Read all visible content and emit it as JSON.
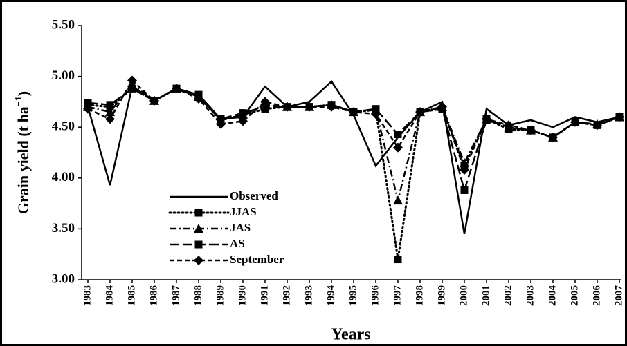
{
  "chart_data": {
    "type": "line",
    "xlabel": "Years",
    "ylabel": {
      "text": "Grain yield (t ha",
      "superscript": "−1",
      "suffix": ")"
    },
    "categories": [
      "1983",
      "1984",
      "1985",
      "1986",
      "1987",
      "1988",
      "1989",
      "1990",
      "1991",
      "1992",
      "1993",
      "1994",
      "1995",
      "1996",
      "1997",
      "1998",
      "1999",
      "2000",
      "2001",
      "2002",
      "2003",
      "2004",
      "2005",
      "2006",
      "2007"
    ],
    "ylim": [
      3,
      5.5
    ],
    "yticks": [
      {
        "value": 3,
        "label": "3.00"
      },
      {
        "value": 3.5,
        "label": "3.50"
      },
      {
        "value": 4,
        "label": "4.00"
      },
      {
        "value": 4.5,
        "label": "4.50"
      },
      {
        "value": 5,
        "label": "5.00"
      },
      {
        "value": 5.5,
        "label": "5.50"
      }
    ],
    "grid": false,
    "series": [
      {
        "name": "Observed",
        "color": "#000000",
        "dash": "solid",
        "marker": "none",
        "values": [
          4.7,
          3.93,
          4.9,
          4.76,
          4.88,
          4.82,
          4.58,
          4.6,
          4.9,
          4.7,
          4.75,
          4.95,
          4.62,
          4.12,
          4.4,
          4.65,
          4.75,
          3.45,
          4.68,
          4.52,
          4.57,
          4.5,
          4.6,
          4.55,
          4.6
        ]
      },
      {
        "name": "JJAS",
        "color": "#000000",
        "dash": "dotted",
        "marker": "square",
        "values": [
          4.72,
          4.7,
          4.88,
          4.76,
          4.88,
          4.8,
          4.57,
          4.62,
          4.68,
          4.7,
          4.7,
          4.72,
          4.65,
          4.67,
          3.2,
          4.65,
          4.68,
          4.12,
          4.58,
          4.48,
          4.47,
          4.4,
          4.55,
          4.52,
          4.6
        ]
      },
      {
        "name": "JAS",
        "color": "#000000",
        "dash": "dashdot",
        "marker": "triangle",
        "values": [
          4.7,
          4.65,
          4.92,
          4.76,
          4.88,
          4.8,
          4.57,
          4.62,
          4.72,
          4.7,
          4.7,
          4.72,
          4.65,
          4.67,
          3.78,
          4.65,
          4.7,
          4.15,
          4.58,
          4.5,
          4.47,
          4.4,
          4.55,
          4.53,
          4.6
        ]
      },
      {
        "name": "AS",
        "color": "#000000",
        "dash": "longdash",
        "marker": "square",
        "values": [
          4.74,
          4.72,
          4.88,
          4.76,
          4.88,
          4.82,
          4.58,
          4.64,
          4.7,
          4.7,
          4.7,
          4.72,
          4.65,
          4.68,
          4.43,
          4.65,
          4.68,
          3.88,
          4.57,
          4.5,
          4.47,
          4.4,
          4.55,
          4.52,
          4.6
        ]
      },
      {
        "name": "September",
        "color": "#000000",
        "dash": "dashed",
        "marker": "diamond",
        "values": [
          4.68,
          4.58,
          4.96,
          4.76,
          4.88,
          4.78,
          4.53,
          4.56,
          4.75,
          4.7,
          4.7,
          4.7,
          4.65,
          4.63,
          4.3,
          4.65,
          4.7,
          4.08,
          4.58,
          4.52,
          4.47,
          4.4,
          4.55,
          4.52,
          4.6
        ]
      }
    ]
  }
}
